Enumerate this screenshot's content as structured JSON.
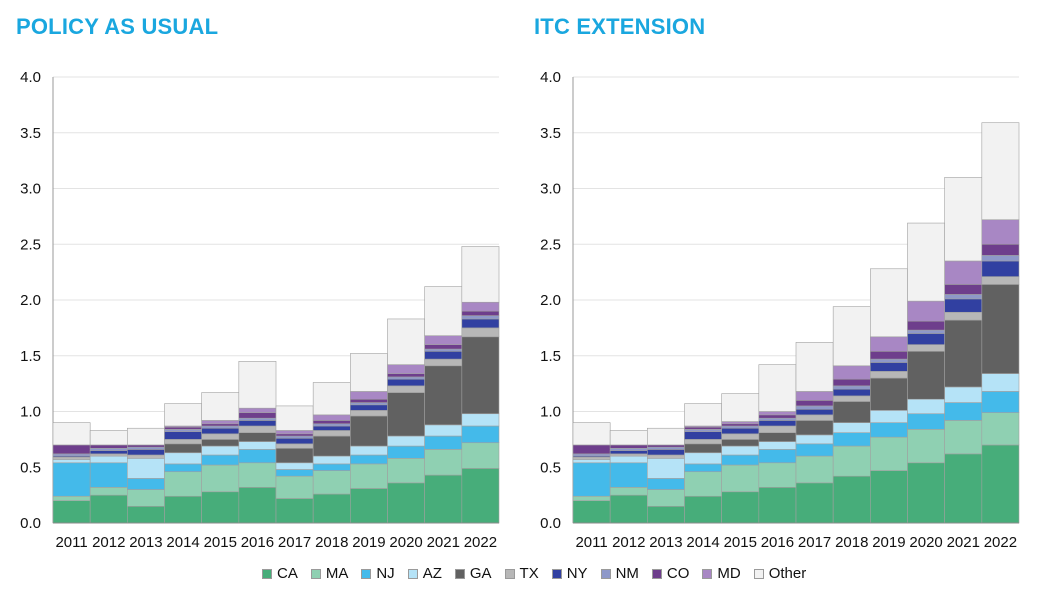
{
  "chart_data": [
    {
      "type": "bar",
      "stacked": true,
      "title": "POLICY AS USUAL",
      "categories": [
        "2011",
        "2012",
        "2013",
        "2014",
        "2015",
        "2016",
        "2017",
        "2018",
        "2019",
        "2020",
        "2021",
        "2022"
      ],
      "ylim": [
        0,
        4.0
      ],
      "yticks": [
        "0.0",
        "0.5",
        "1.0",
        "1.5",
        "2.0",
        "2.5",
        "3.0",
        "3.5",
        "4.0"
      ],
      "grid": true,
      "series": [
        {
          "name": "CA",
          "values": [
            0.2,
            0.25,
            0.15,
            0.24,
            0.28,
            0.32,
            0.22,
            0.26,
            0.31,
            0.36,
            0.43,
            0.49
          ]
        },
        {
          "name": "MA",
          "values": [
            0.04,
            0.07,
            0.15,
            0.22,
            0.24,
            0.22,
            0.2,
            0.21,
            0.22,
            0.22,
            0.23,
            0.23
          ]
        },
        {
          "name": "NJ",
          "values": [
            0.3,
            0.22,
            0.1,
            0.07,
            0.09,
            0.12,
            0.06,
            0.06,
            0.08,
            0.11,
            0.12,
            0.15
          ]
        },
        {
          "name": "AZ",
          "values": [
            0.03,
            0.06,
            0.18,
            0.1,
            0.08,
            0.07,
            0.06,
            0.07,
            0.08,
            0.09,
            0.1,
            0.11
          ]
        },
        {
          "name": "GA",
          "values": [
            0.0,
            0.0,
            0.0,
            0.08,
            0.06,
            0.08,
            0.13,
            0.18,
            0.27,
            0.39,
            0.53,
            0.69
          ]
        },
        {
          "name": "TX",
          "values": [
            0.02,
            0.02,
            0.03,
            0.04,
            0.05,
            0.06,
            0.04,
            0.05,
            0.05,
            0.06,
            0.06,
            0.08
          ]
        },
        {
          "name": "NY",
          "values": [
            0.01,
            0.03,
            0.05,
            0.07,
            0.05,
            0.05,
            0.05,
            0.04,
            0.05,
            0.06,
            0.07,
            0.08
          ]
        },
        {
          "name": "NM",
          "values": [
            0.02,
            0.02,
            0.02,
            0.02,
            0.02,
            0.02,
            0.02,
            0.02,
            0.02,
            0.02,
            0.02,
            0.03
          ]
        },
        {
          "name": "CO",
          "values": [
            0.08,
            0.03,
            0.02,
            0.02,
            0.02,
            0.05,
            0.02,
            0.03,
            0.03,
            0.03,
            0.04,
            0.04
          ]
        },
        {
          "name": "MD",
          "values": [
            0.0,
            0.0,
            0.0,
            0.01,
            0.03,
            0.04,
            0.03,
            0.05,
            0.07,
            0.08,
            0.08,
            0.08
          ]
        },
        {
          "name": "Other",
          "values": [
            0.2,
            0.13,
            0.15,
            0.2,
            0.25,
            0.42,
            0.22,
            0.29,
            0.34,
            0.41,
            0.44,
            0.5
          ]
        }
      ]
    },
    {
      "type": "bar",
      "stacked": true,
      "title": "ITC EXTENSION",
      "categories": [
        "2011",
        "2012",
        "2013",
        "2014",
        "2015",
        "2016",
        "2017",
        "2018",
        "2019",
        "2020",
        "2021",
        "2022"
      ],
      "ylim": [
        0,
        4.0
      ],
      "yticks": [
        "0.0",
        "0.5",
        "1.0",
        "1.5",
        "2.0",
        "2.5",
        "3.0",
        "3.5",
        "4.0"
      ],
      "grid": true,
      "series": [
        {
          "name": "CA",
          "values": [
            0.2,
            0.25,
            0.15,
            0.24,
            0.28,
            0.32,
            0.36,
            0.42,
            0.47,
            0.54,
            0.62,
            0.7
          ]
        },
        {
          "name": "MA",
          "values": [
            0.04,
            0.07,
            0.15,
            0.22,
            0.24,
            0.22,
            0.24,
            0.27,
            0.3,
            0.3,
            0.3,
            0.29
          ]
        },
        {
          "name": "NJ",
          "values": [
            0.3,
            0.22,
            0.1,
            0.07,
            0.09,
            0.12,
            0.11,
            0.12,
            0.13,
            0.14,
            0.16,
            0.19
          ]
        },
        {
          "name": "AZ",
          "values": [
            0.03,
            0.06,
            0.18,
            0.1,
            0.08,
            0.07,
            0.08,
            0.09,
            0.11,
            0.13,
            0.14,
            0.16
          ]
        },
        {
          "name": "GA",
          "values": [
            0.0,
            0.0,
            0.0,
            0.08,
            0.06,
            0.08,
            0.13,
            0.19,
            0.29,
            0.43,
            0.6,
            0.8
          ]
        },
        {
          "name": "TX",
          "values": [
            0.02,
            0.02,
            0.03,
            0.04,
            0.05,
            0.06,
            0.05,
            0.05,
            0.06,
            0.06,
            0.07,
            0.07
          ]
        },
        {
          "name": "NY",
          "values": [
            0.01,
            0.03,
            0.05,
            0.07,
            0.05,
            0.05,
            0.05,
            0.06,
            0.08,
            0.1,
            0.12,
            0.14
          ]
        },
        {
          "name": "NM",
          "values": [
            0.02,
            0.02,
            0.02,
            0.02,
            0.02,
            0.02,
            0.03,
            0.03,
            0.03,
            0.03,
            0.04,
            0.05
          ]
        },
        {
          "name": "CO",
          "values": [
            0.08,
            0.03,
            0.02,
            0.02,
            0.02,
            0.03,
            0.05,
            0.06,
            0.07,
            0.08,
            0.09,
            0.1
          ]
        },
        {
          "name": "MD",
          "values": [
            0.0,
            0.0,
            0.0,
            0.01,
            0.02,
            0.03,
            0.08,
            0.12,
            0.13,
            0.18,
            0.21,
            0.22
          ]
        },
        {
          "name": "Other",
          "values": [
            0.2,
            0.13,
            0.15,
            0.2,
            0.25,
            0.42,
            0.44,
            0.53,
            0.61,
            0.7,
            0.75,
            0.87
          ]
        }
      ]
    }
  ],
  "legend": [
    {
      "name": "CA",
      "color": "#47ad7a"
    },
    {
      "name": "MA",
      "color": "#8fd0b2"
    },
    {
      "name": "NJ",
      "color": "#44baea"
    },
    {
      "name": "AZ",
      "color": "#b5e3f7"
    },
    {
      "name": "GA",
      "color": "#616161"
    },
    {
      "name": "TX",
      "color": "#b7b7b7"
    },
    {
      "name": "NY",
      "color": "#3140a1"
    },
    {
      "name": "NM",
      "color": "#8e98c9"
    },
    {
      "name": "CO",
      "color": "#6e3e8c"
    },
    {
      "name": "MD",
      "color": "#a887c4"
    },
    {
      "name": "Other",
      "color": "#f2f2f2"
    }
  ]
}
